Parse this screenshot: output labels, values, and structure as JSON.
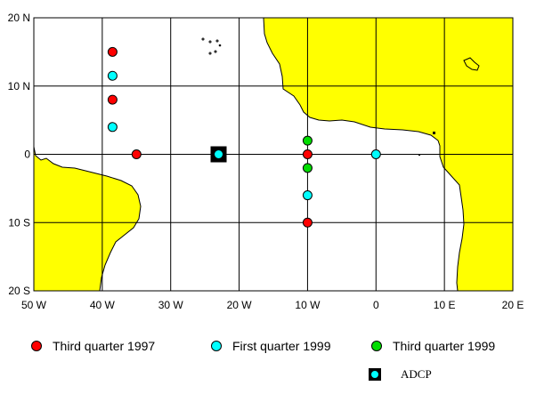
{
  "map": {
    "lon_range": [
      -50,
      20
    ],
    "lat_range": [
      -20,
      20
    ],
    "lon_ticks": [
      {
        "value": -50,
        "label": "50 W"
      },
      {
        "value": -40,
        "label": "40 W"
      },
      {
        "value": -30,
        "label": "30 W"
      },
      {
        "value": -20,
        "label": "20 W"
      },
      {
        "value": -10,
        "label": "10 W"
      },
      {
        "value": 0,
        "label": "0"
      },
      {
        "value": 10,
        "label": "10 E"
      },
      {
        "value": 20,
        "label": "20 E"
      }
    ],
    "lat_ticks": [
      {
        "value": 20,
        "label": "20 N"
      },
      {
        "value": 10,
        "label": "10 N"
      },
      {
        "value": 0,
        "label": "0"
      },
      {
        "value": -10,
        "label": "10 S"
      },
      {
        "value": -20,
        "label": "20 S"
      }
    ],
    "grid": true,
    "colors": {
      "land": "#ffff00",
      "ocean": "#ffffff",
      "q3_1997": "#ff0000",
      "q1_1999": "#00ffff",
      "q3_1999": "#00dd00",
      "adcp_frame": "#000000"
    },
    "stations": [
      {
        "lon": -38.5,
        "lat": 15,
        "series": "q3_1997"
      },
      {
        "lon": -38.5,
        "lat": 11.5,
        "series": "q1_1999"
      },
      {
        "lon": -38.5,
        "lat": 8,
        "series": "q3_1997"
      },
      {
        "lon": -38.5,
        "lat": 4,
        "series": "q1_1999"
      },
      {
        "lon": -35,
        "lat": 0,
        "series": "q3_1997"
      },
      {
        "lon": -10,
        "lat": 2,
        "series": "q3_1999"
      },
      {
        "lon": -10,
        "lat": 0,
        "series": "q3_1997"
      },
      {
        "lon": -10,
        "lat": -2,
        "series": "q3_1999"
      },
      {
        "lon": -10,
        "lat": -6,
        "series": "q1_1999"
      },
      {
        "lon": -10,
        "lat": -10,
        "series": "q3_1997"
      },
      {
        "lon": 0,
        "lat": 0,
        "series": "q1_1999"
      }
    ],
    "adcp": {
      "lon": -23,
      "lat": 0,
      "series": "q1_1999"
    }
  },
  "legend": {
    "q3_1997": "Third quarter 1997",
    "q1_1999": "First quarter 1999",
    "q3_1999": "Third quarter 1999",
    "adcp": "ADCP"
  }
}
